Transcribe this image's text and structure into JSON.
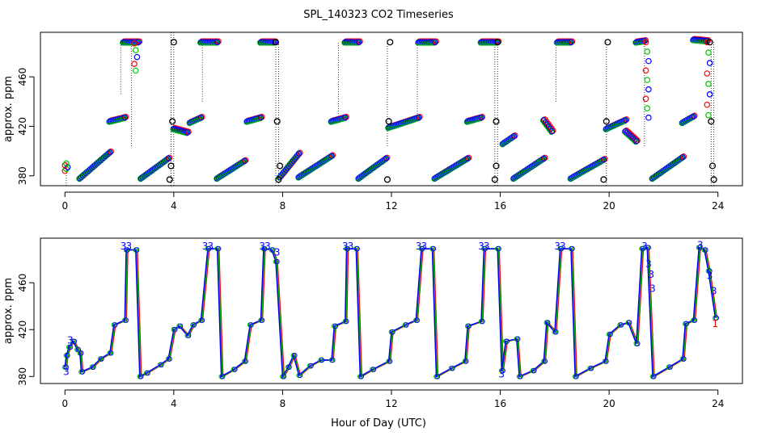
{
  "chart_data": {
    "type": "scatter",
    "title": "SPL_140323  CO2 Timeseries",
    "xlabel": "Hour of Day (UTC)",
    "xlim": [
      -0.9,
      24.9
    ],
    "x_ticks": [
      0,
      4,
      8,
      12,
      16,
      20,
      24
    ],
    "series_colors": {
      "1": "#ff0000",
      "2": "#00c800",
      "3": "#0000ff",
      "ref": "#000000"
    },
    "panels": [
      {
        "id": "top",
        "ylabel": "approx. ppm",
        "ylim": [
          372,
          496
        ],
        "y_ticks": [
          380,
          420,
          460
        ],
        "style": "circles",
        "segments": [
          {
            "x0": 0.55,
            "x1": 1.65,
            "y0": 378,
            "y1": 399
          },
          {
            "x0": 1.65,
            "x1": 2.2,
            "y0": 424,
            "y1": 427
          },
          {
            "x0": 2.15,
            "x1": 2.7,
            "y0": 488,
            "y1": 488
          },
          {
            "x0": 2.8,
            "x1": 3.8,
            "y0": 378,
            "y1": 394
          },
          {
            "x0": 4.0,
            "x1": 4.5,
            "y0": 418,
            "y1": 415
          },
          {
            "x0": 4.6,
            "x1": 5.0,
            "y0": 423,
            "y1": 427
          },
          {
            "x0": 5.0,
            "x1": 5.6,
            "y0": 488,
            "y1": 488
          },
          {
            "x0": 5.6,
            "x1": 6.6,
            "y0": 378,
            "y1": 392
          },
          {
            "x0": 6.7,
            "x1": 7.2,
            "y0": 424,
            "y1": 427
          },
          {
            "x0": 7.2,
            "x1": 7.7,
            "y0": 488,
            "y1": 488
          },
          {
            "x0": 7.9,
            "x1": 8.6,
            "y0": 379,
            "y1": 398
          },
          {
            "x0": 8.6,
            "x1": 9.8,
            "y0": 379,
            "y1": 396
          },
          {
            "x0": 9.8,
            "x1": 10.3,
            "y0": 424,
            "y1": 427
          },
          {
            "x0": 10.3,
            "x1": 10.8,
            "y0": 488,
            "y1": 488
          },
          {
            "x0": 10.8,
            "x1": 11.8,
            "y0": 378,
            "y1": 394
          },
          {
            "x0": 11.9,
            "x1": 13.0,
            "y0": 419,
            "y1": 427
          },
          {
            "x0": 13.0,
            "x1": 13.6,
            "y0": 488,
            "y1": 488
          },
          {
            "x0": 13.6,
            "x1": 14.8,
            "y0": 378,
            "y1": 394
          },
          {
            "x0": 14.8,
            "x1": 15.3,
            "y0": 424,
            "y1": 427
          },
          {
            "x0": 15.3,
            "x1": 15.9,
            "y0": 488,
            "y1": 488
          },
          {
            "x0": 16.1,
            "x1": 16.5,
            "y0": 406,
            "y1": 412
          },
          {
            "x0": 16.5,
            "x1": 17.6,
            "y0": 378,
            "y1": 394
          },
          {
            "x0": 17.6,
            "x1": 17.9,
            "y0": 425,
            "y1": 416
          },
          {
            "x0": 18.1,
            "x1": 18.6,
            "y0": 488,
            "y1": 488
          },
          {
            "x0": 18.6,
            "x1": 19.8,
            "y0": 378,
            "y1": 393
          },
          {
            "x0": 19.9,
            "x1": 20.6,
            "y0": 418,
            "y1": 425
          },
          {
            "x0": 20.6,
            "x1": 21.0,
            "y0": 416,
            "y1": 408
          },
          {
            "x0": 21.0,
            "x1": 21.3,
            "y0": 488,
            "y1": 489
          },
          {
            "x0": 21.6,
            "x1": 22.7,
            "y0": 378,
            "y1": 395
          },
          {
            "x0": 22.7,
            "x1": 23.1,
            "y0": 423,
            "y1": 428
          },
          {
            "x0": 23.1,
            "x1": 23.6,
            "y0": 490,
            "y1": 489
          }
        ],
        "drops": [
          {
            "x": 0.0,
            "y0": 384,
            "y1": 390
          },
          {
            "x": 2.55,
            "y0": 487,
            "y1": 465
          },
          {
            "x": 21.35,
            "y0": 488,
            "y1": 427
          },
          {
            "x": 23.6,
            "y0": 488,
            "y1": 429
          }
        ],
        "ref_points": [
          {
            "x": 3.85,
            "y": 377
          },
          {
            "x": 3.9,
            "y": 388
          },
          {
            "x": 3.95,
            "y": 424
          },
          {
            "x": 4.0,
            "y": 488
          },
          {
            "x": 7.85,
            "y": 377
          },
          {
            "x": 7.9,
            "y": 388
          },
          {
            "x": 7.8,
            "y": 424
          },
          {
            "x": 7.75,
            "y": 488
          },
          {
            "x": 11.85,
            "y": 377
          },
          {
            "x": 11.9,
            "y": 424
          },
          {
            "x": 11.95,
            "y": 488
          },
          {
            "x": 15.8,
            "y": 377
          },
          {
            "x": 15.85,
            "y": 388
          },
          {
            "x": 15.85,
            "y": 424
          },
          {
            "x": 15.9,
            "y": 488
          },
          {
            "x": 19.8,
            "y": 377
          },
          {
            "x": 19.9,
            "y": 424
          },
          {
            "x": 19.95,
            "y": 488
          },
          {
            "x": 23.85,
            "y": 377
          },
          {
            "x": 23.8,
            "y": 388
          },
          {
            "x": 23.75,
            "y": 424
          },
          {
            "x": 23.7,
            "y": 488
          }
        ],
        "stems": [
          {
            "x": 0.05,
            "y0": 372,
            "y1": 390
          },
          {
            "x": 2.05,
            "y0": 446,
            "y1": 488
          },
          {
            "x": 2.45,
            "y0": 404,
            "y1": 488
          },
          {
            "x": 3.9,
            "y0": 372,
            "y1": 496
          },
          {
            "x": 4.0,
            "y0": 372,
            "y1": 496
          },
          {
            "x": 5.05,
            "y0": 440,
            "y1": 488
          },
          {
            "x": 7.75,
            "y0": 372,
            "y1": 488
          },
          {
            "x": 7.85,
            "y0": 372,
            "y1": 488
          },
          {
            "x": 10.05,
            "y0": 430,
            "y1": 488
          },
          {
            "x": 11.85,
            "y0": 404,
            "y1": 488
          },
          {
            "x": 12.95,
            "y0": 430,
            "y1": 488
          },
          {
            "x": 15.8,
            "y0": 372,
            "y1": 488
          },
          {
            "x": 15.9,
            "y0": 372,
            "y1": 488
          },
          {
            "x": 18.05,
            "y0": 440,
            "y1": 488
          },
          {
            "x": 19.9,
            "y0": 372,
            "y1": 488
          },
          {
            "x": 21.3,
            "y0": 404,
            "y1": 488
          },
          {
            "x": 23.75,
            "y0": 372,
            "y1": 488
          },
          {
            "x": 23.85,
            "y0": 372,
            "y1": 488
          }
        ]
      },
      {
        "id": "bottom",
        "ylabel": "approx. ppm",
        "ylim": [
          374,
          498
        ],
        "y_ticks": [
          380,
          420,
          460
        ],
        "style": "lines_with_digits",
        "points": [
          [
            0.0,
            388
          ],
          [
            0.05,
            398
          ],
          [
            0.15,
            405
          ],
          [
            0.3,
            410
          ],
          [
            0.45,
            403
          ],
          [
            0.55,
            400
          ],
          [
            0.6,
            384
          ],
          [
            1.0,
            388
          ],
          [
            1.3,
            395
          ],
          [
            1.65,
            400
          ],
          [
            1.8,
            424
          ],
          [
            2.2,
            428
          ],
          [
            2.25,
            488
          ],
          [
            2.6,
            488
          ],
          [
            2.75,
            380
          ],
          [
            3.0,
            383
          ],
          [
            3.5,
            390
          ],
          [
            3.8,
            395
          ],
          [
            4.0,
            420
          ],
          [
            4.2,
            423
          ],
          [
            4.5,
            415
          ],
          [
            4.7,
            424
          ],
          [
            5.0,
            428
          ],
          [
            5.25,
            489
          ],
          [
            5.6,
            489
          ],
          [
            5.75,
            380
          ],
          [
            6.2,
            386
          ],
          [
            6.6,
            393
          ],
          [
            6.8,
            424
          ],
          [
            7.2,
            428
          ],
          [
            7.3,
            489
          ],
          [
            7.6,
            488
          ],
          [
            7.75,
            478
          ],
          [
            8.0,
            380
          ],
          [
            8.2,
            388
          ],
          [
            8.4,
            398
          ],
          [
            8.6,
            381
          ],
          [
            9.0,
            389
          ],
          [
            9.4,
            394
          ],
          [
            9.8,
            394
          ],
          [
            9.9,
            423
          ],
          [
            10.3,
            427
          ],
          [
            10.35,
            489
          ],
          [
            10.7,
            489
          ],
          [
            10.85,
            380
          ],
          [
            11.3,
            386
          ],
          [
            11.9,
            393
          ],
          [
            12.0,
            418
          ],
          [
            12.5,
            424
          ],
          [
            12.9,
            428
          ],
          [
            13.1,
            489
          ],
          [
            13.5,
            489
          ],
          [
            13.65,
            380
          ],
          [
            14.2,
            387
          ],
          [
            14.7,
            393
          ],
          [
            14.8,
            423
          ],
          [
            15.3,
            427
          ],
          [
            15.4,
            489
          ],
          [
            15.9,
            489
          ],
          [
            16.05,
            385
          ],
          [
            16.2,
            410
          ],
          [
            16.6,
            412
          ],
          [
            16.7,
            380
          ],
          [
            17.2,
            385
          ],
          [
            17.6,
            393
          ],
          [
            17.7,
            426
          ],
          [
            18.0,
            418
          ],
          [
            18.2,
            489
          ],
          [
            18.6,
            489
          ],
          [
            18.75,
            380
          ],
          [
            19.3,
            387
          ],
          [
            19.85,
            393
          ],
          [
            20.0,
            416
          ],
          [
            20.4,
            424
          ],
          [
            20.7,
            426
          ],
          [
            21.0,
            408
          ],
          [
            21.2,
            489
          ],
          [
            21.4,
            490
          ],
          [
            21.6,
            380
          ],
          [
            22.2,
            388
          ],
          [
            22.7,
            395
          ],
          [
            22.8,
            425
          ],
          [
            23.1,
            428
          ],
          [
            23.3,
            490
          ],
          [
            23.5,
            488
          ],
          [
            23.65,
            470
          ],
          [
            23.9,
            430
          ]
        ],
        "digit_labels": [
          {
            "x": 0.05,
            "y": 384,
            "text": "3"
          },
          {
            "x": 0.2,
            "y": 411,
            "text": "3"
          },
          {
            "x": 2.15,
            "y": 491,
            "text": "3"
          },
          {
            "x": 2.35,
            "y": 491,
            "text": "3"
          },
          {
            "x": 5.15,
            "y": 491,
            "text": "3"
          },
          {
            "x": 5.35,
            "y": 491,
            "text": "3"
          },
          {
            "x": 7.25,
            "y": 491,
            "text": "3"
          },
          {
            "x": 7.45,
            "y": 491,
            "text": "3"
          },
          {
            "x": 7.8,
            "y": 486,
            "text": "3"
          },
          {
            "x": 10.3,
            "y": 491,
            "text": "3"
          },
          {
            "x": 10.5,
            "y": 491,
            "text": "3"
          },
          {
            "x": 13.0,
            "y": 491,
            "text": "3"
          },
          {
            "x": 13.2,
            "y": 491,
            "text": "3"
          },
          {
            "x": 15.3,
            "y": 491,
            "text": "3"
          },
          {
            "x": 15.5,
            "y": 491,
            "text": "3"
          },
          {
            "x": 16.05,
            "y": 382,
            "text": "3"
          },
          {
            "x": 18.1,
            "y": 491,
            "text": "3"
          },
          {
            "x": 18.3,
            "y": 491,
            "text": "3"
          },
          {
            "x": 21.3,
            "y": 491,
            "text": "3"
          },
          {
            "x": 21.45,
            "y": 476,
            "text": "3"
          },
          {
            "x": 21.55,
            "y": 467,
            "text": "3"
          },
          {
            "x": 21.6,
            "y": 455,
            "text": "3"
          },
          {
            "x": 23.35,
            "y": 492,
            "text": "3"
          },
          {
            "x": 23.7,
            "y": 466,
            "text": "3"
          },
          {
            "x": 23.85,
            "y": 453,
            "text": "3"
          },
          {
            "x": 23.9,
            "y": 425,
            "text": "1"
          }
        ]
      }
    ]
  }
}
